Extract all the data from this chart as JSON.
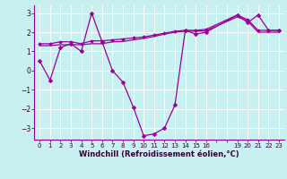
{
  "title": "",
  "xlabel": "Windchill (Refroidissement éolien,°C)",
  "ylabel": "",
  "bg_color": "#c8f0f0",
  "line_color": "#990099",
  "grid_color": "#ffffff",
  "ylim": [
    -3.6,
    3.4
  ],
  "xlim": [
    -0.5,
    23.5
  ],
  "yticks": [
    -3,
    -2,
    -1,
    0,
    1,
    2,
    3
  ],
  "xticks": [
    0,
    1,
    2,
    3,
    4,
    5,
    6,
    7,
    8,
    9,
    10,
    11,
    12,
    13,
    14,
    15,
    16,
    17,
    18,
    19,
    20,
    21,
    22,
    23
  ],
  "xtick_labels": [
    "0",
    "1",
    "2",
    "3",
    "4",
    "5",
    "6",
    "7",
    "8",
    "9",
    "10",
    "11",
    "12",
    "13",
    "14",
    "15",
    "16",
    "",
    "",
    "19",
    "20",
    "21",
    "22",
    "23"
  ],
  "series1_x": [
    0,
    1,
    2,
    3,
    4,
    5,
    6,
    7,
    8,
    9,
    10,
    11,
    12,
    13,
    14,
    15,
    16,
    19,
    20,
    21,
    22,
    23
  ],
  "series1_y": [
    0.5,
    -0.5,
    1.2,
    1.4,
    1.0,
    3.0,
    1.5,
    0.0,
    -0.6,
    -1.9,
    -3.4,
    -3.3,
    -3.0,
    -1.8,
    2.1,
    1.9,
    2.0,
    2.9,
    2.5,
    2.9,
    2.1,
    2.1
  ],
  "series2_x": [
    0,
    1,
    2,
    3,
    4,
    5,
    6,
    7,
    8,
    9,
    10,
    11,
    12,
    13,
    14,
    15,
    16,
    19,
    20,
    21,
    22,
    23
  ],
  "series2_y": [
    1.4,
    1.4,
    1.5,
    1.5,
    1.4,
    1.55,
    1.55,
    1.6,
    1.65,
    1.7,
    1.75,
    1.85,
    1.95,
    2.05,
    2.1,
    2.1,
    2.15,
    2.9,
    2.65,
    2.1,
    2.1,
    2.1
  ],
  "series3_x": [
    0,
    1,
    2,
    3,
    4,
    5,
    6,
    7,
    8,
    9,
    10,
    11,
    12,
    13,
    14,
    15,
    16,
    19,
    20,
    21,
    22,
    23
  ],
  "series3_y": [
    1.3,
    1.3,
    1.35,
    1.35,
    1.35,
    1.4,
    1.4,
    1.5,
    1.52,
    1.6,
    1.68,
    1.78,
    1.9,
    2.0,
    2.05,
    2.05,
    2.08,
    2.8,
    2.58,
    2.0,
    2.0,
    2.0
  ]
}
